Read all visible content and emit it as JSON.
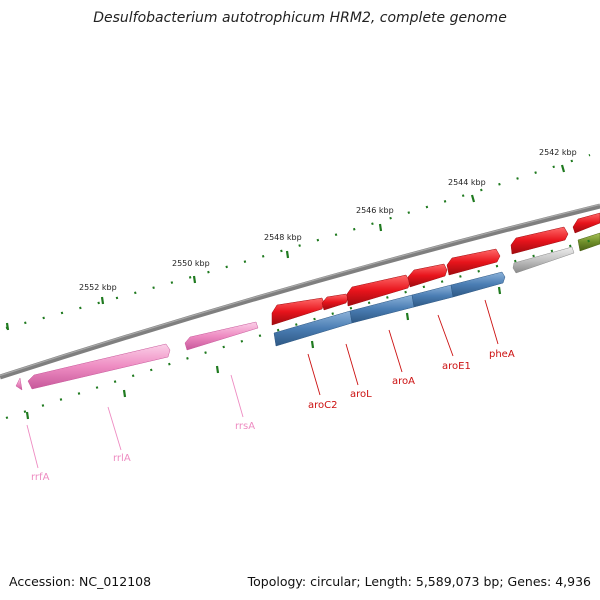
{
  "title": "Desulfobacterium autotrophicum HRM2, complete genome",
  "footer": {
    "accession": "Accession: NC_012108",
    "stats": "Topology: circular; Length: 5,589,073 bp; Genes: 4,936"
  },
  "genome": {
    "topology": "circular",
    "length_bp": 5589073,
    "gene_count": 4936
  },
  "scale": {
    "unit": "kbp",
    "major_ticks": [
      {
        "kbp": 2542,
        "label": "2542 kbp"
      },
      {
        "kbp": 2544,
        "label": "2544 kbp"
      },
      {
        "kbp": 2546,
        "label": "2546 kbp"
      },
      {
        "kbp": 2548,
        "label": "2548 kbp"
      },
      {
        "kbp": 2550,
        "label": "2550 kbp"
      },
      {
        "kbp": 2552,
        "label": "2552 kbp"
      }
    ]
  },
  "colors": {
    "backbone": "#7f7f7f",
    "tick": "#1f7a1f",
    "amino_acid_gene": "#e8141c",
    "amino_acid_pathway": "#4a7db3",
    "rrna_gene": "#ee8cc2",
    "rrna_label": "#ee8cc2",
    "gene_label": "#cc1111",
    "other_gene": "#c2c2c2",
    "olive_gene": "#6f8f2a"
  },
  "gene_labels": [
    {
      "name": "pheA",
      "color": "#cc1111"
    },
    {
      "name": "aroE1",
      "color": "#cc1111"
    },
    {
      "name": "aroA",
      "color": "#cc1111"
    },
    {
      "name": "aroL",
      "color": "#cc1111"
    },
    {
      "name": "aroC2",
      "color": "#cc1111"
    },
    {
      "name": "rrsA",
      "color": "#ee8cc2"
    },
    {
      "name": "rrlA",
      "color": "#ee8cc2"
    },
    {
      "name": "rrfA",
      "color": "#ee8cc2"
    }
  ]
}
